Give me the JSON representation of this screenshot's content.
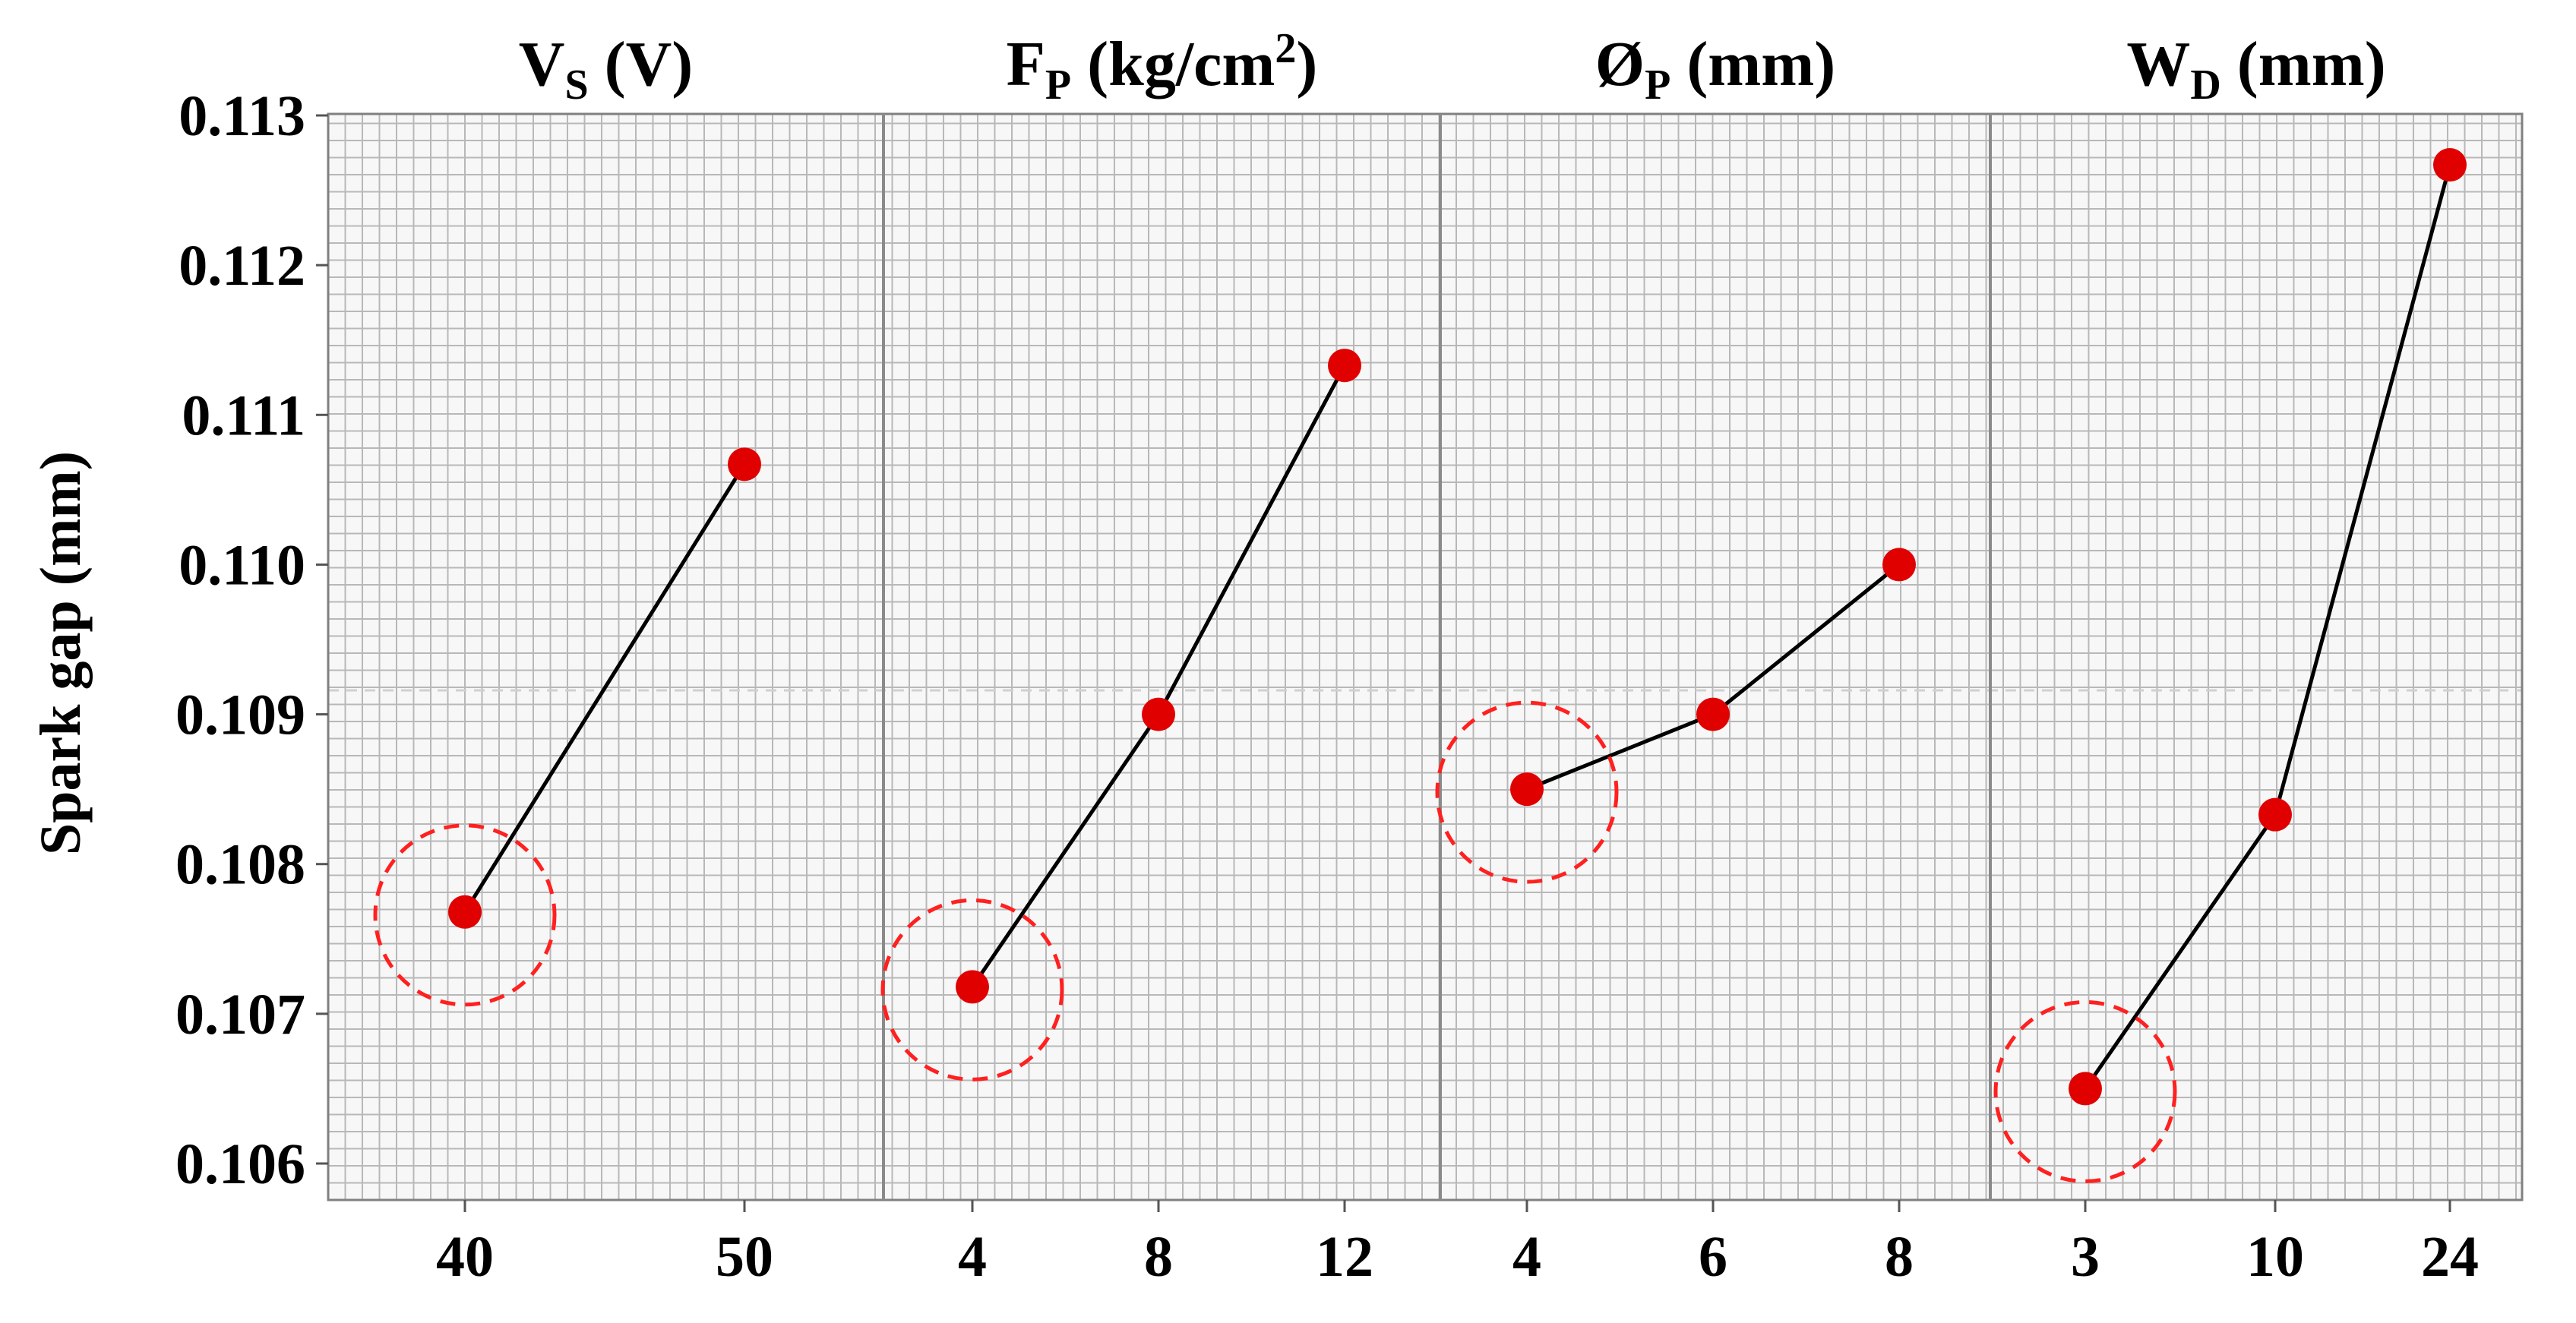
{
  "chart_data": {
    "type": "line",
    "title": "",
    "ylabel": "Spark gap (mm)",
    "ylim": [
      0.106,
      0.113
    ],
    "yticks": [
      "0.106",
      "0.107",
      "0.108",
      "0.109",
      "0.110",
      "0.111",
      "0.112",
      "0.113"
    ],
    "mean_reference": 0.10916,
    "colors": {
      "marker": "#e00000",
      "line": "#000000",
      "highlight": "#ff2020",
      "grid": "#b8b8b8"
    },
    "panels": [
      {
        "name": "Vs",
        "title_main": "V",
        "title_sub": "S",
        "title_rest": " (V)",
        "title_sup": "",
        "categories": [
          "40",
          "50"
        ],
        "values": [
          0.10768,
          0.11067
        ],
        "optimal": "40"
      },
      {
        "name": "Fp",
        "title_main": "F",
        "title_sub": "P",
        "title_rest": " (kg/cm",
        "title_sup": "2",
        "title_end": ")",
        "categories": [
          "4",
          "8",
          "12"
        ],
        "values": [
          0.10718,
          0.109,
          0.11133
        ],
        "optimal": "4"
      },
      {
        "name": "Dp",
        "title_main": "Ø",
        "title_sub": "P",
        "title_rest": " (mm)",
        "title_sup": "",
        "categories": [
          "4",
          "6",
          "8"
        ],
        "values": [
          0.1085,
          0.109,
          0.11
        ],
        "optimal": "4"
      },
      {
        "name": "Wd",
        "title_main": "W",
        "title_sub": "D",
        "title_rest": " (mm)",
        "title_sup": "",
        "categories": [
          "3",
          "10",
          "24"
        ],
        "values": [
          0.1065,
          0.10833,
          0.11267
        ],
        "optimal": "3"
      }
    ]
  }
}
